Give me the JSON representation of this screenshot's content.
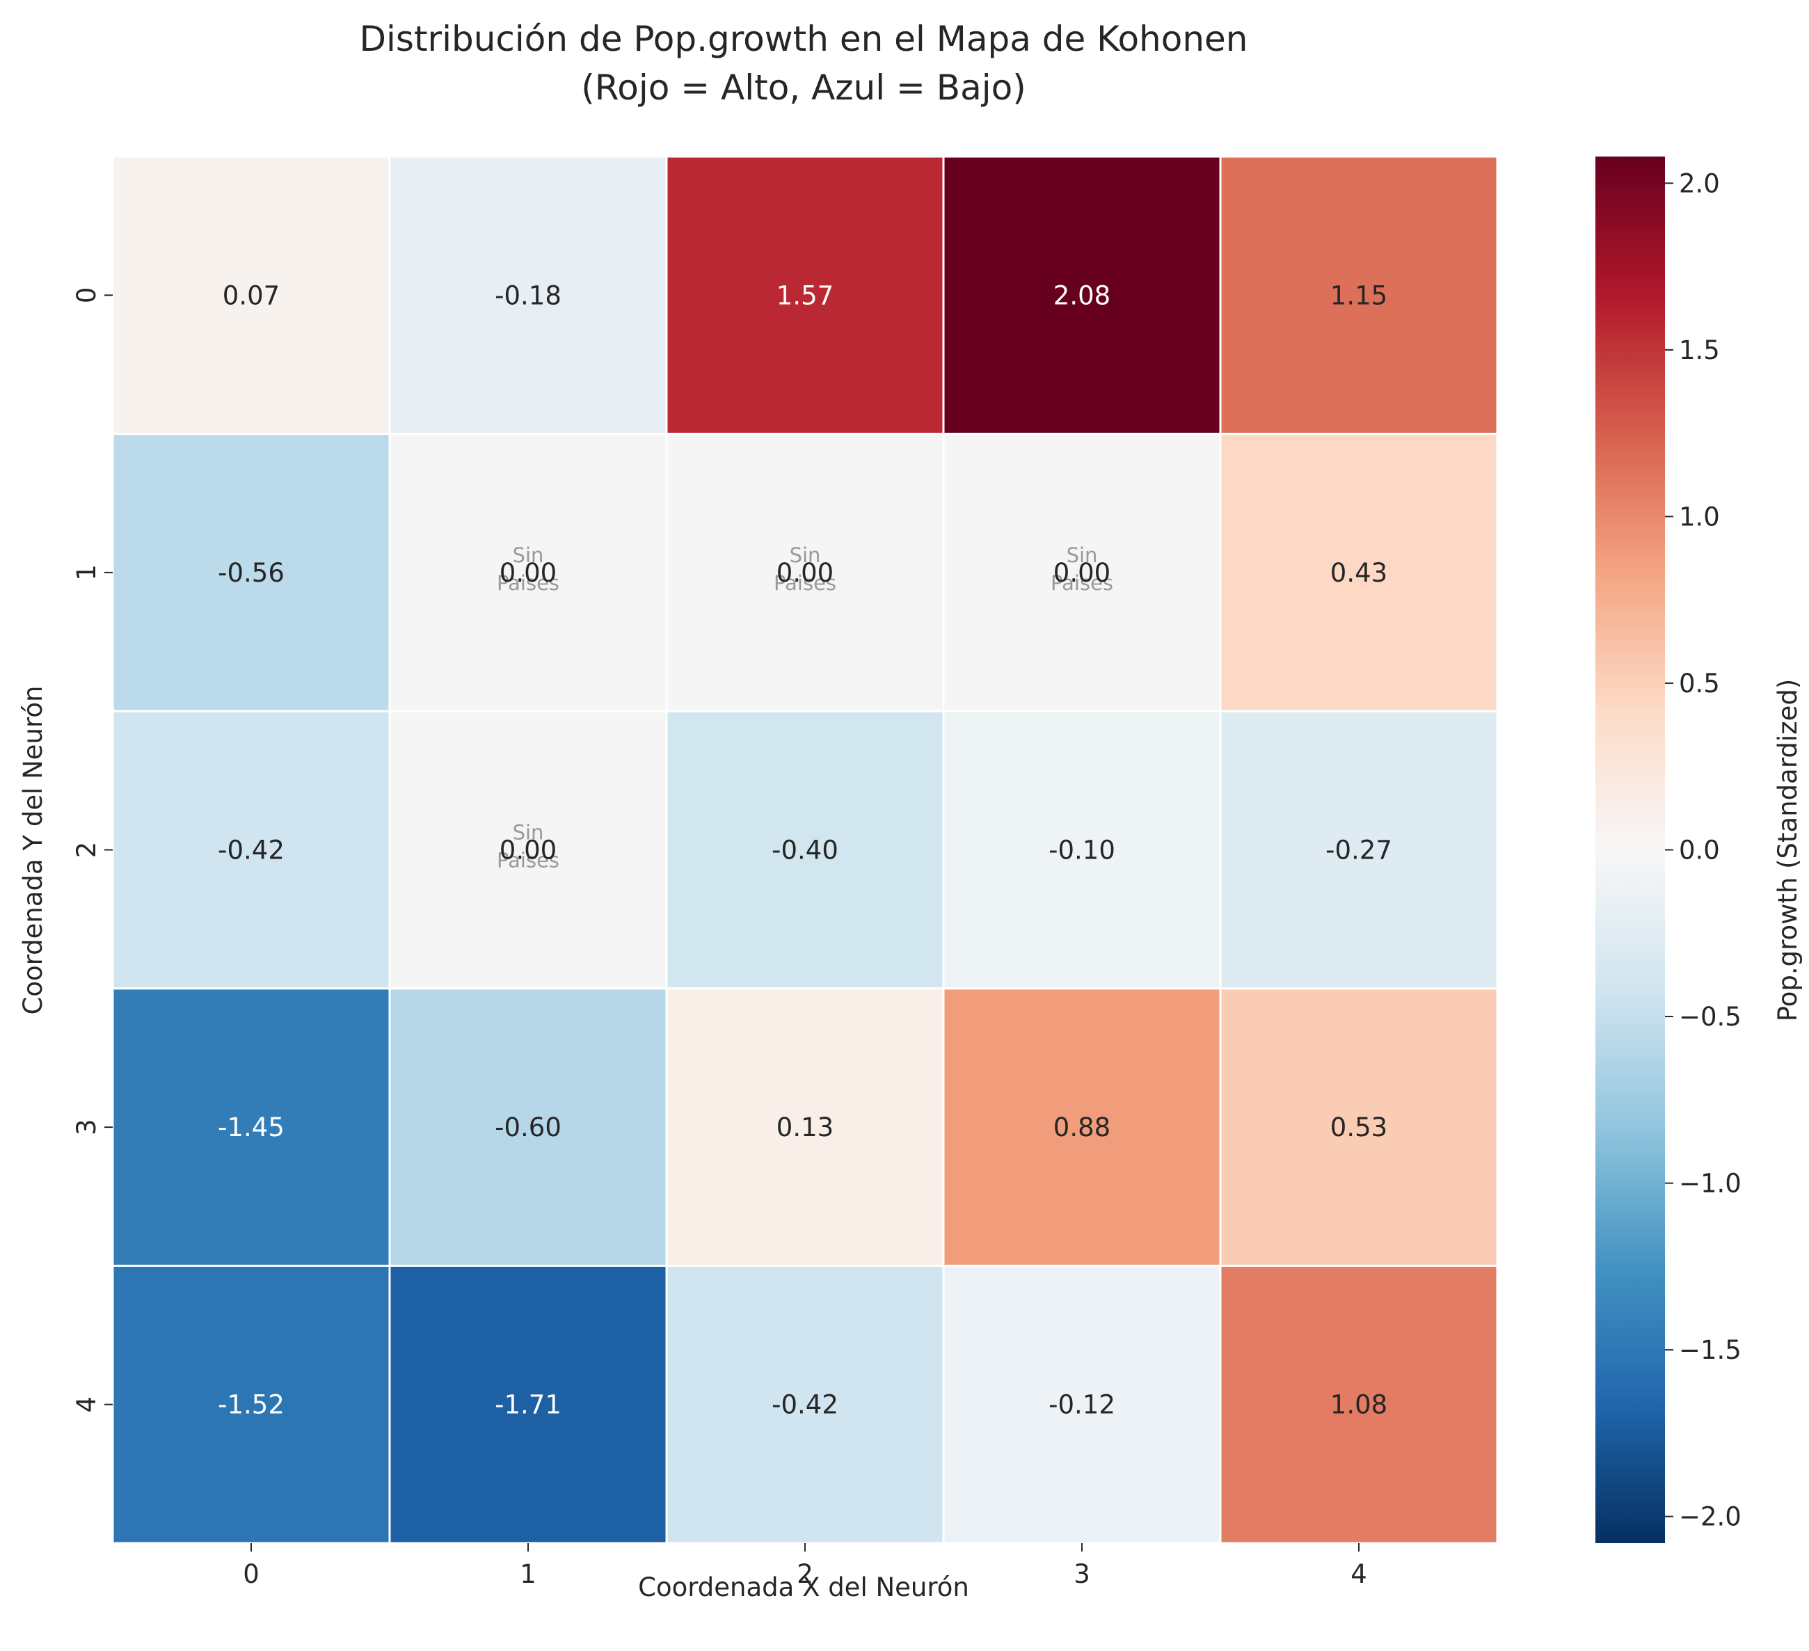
{
  "chart_data": {
    "type": "heatmap",
    "title_line1": "Distribución de Pop.growth en el Mapa de Kohonen",
    "title_line2": "(Rojo = Alto, Azul = Bajo)",
    "xlabel": "Coordenada X del Neurón",
    "ylabel": "Coordenada Y del Neurón",
    "colorbar_label": "Pop.growth (Standardized)",
    "colormap": "RdBu_r",
    "vlim": [
      -2.08,
      2.08
    ],
    "x_categories": [
      "0",
      "1",
      "2",
      "3",
      "4"
    ],
    "y_categories": [
      "0",
      "1",
      "2",
      "3",
      "4"
    ],
    "values": [
      [
        0.07,
        -0.18,
        1.57,
        2.08,
        1.15
      ],
      [
        -0.56,
        0.0,
        0.0,
        0.0,
        0.43
      ],
      [
        -0.42,
        0.0,
        -0.4,
        -0.1,
        -0.27
      ],
      [
        -1.45,
        -0.6,
        0.13,
        0.88,
        0.53
      ],
      [
        -1.52,
        -1.71,
        -0.42,
        -0.12,
        1.08
      ]
    ],
    "cell_labels": [
      [
        "0.07",
        "-0.18",
        "1.57",
        "2.08",
        "1.15"
      ],
      [
        "-0.56",
        "0.00",
        "0.00",
        "0.00",
        "0.43"
      ],
      [
        "-0.42",
        "0.00",
        "-0.40",
        "-0.10",
        "-0.27"
      ],
      [
        "-1.45",
        "-0.60",
        "0.13",
        "0.88",
        "0.53"
      ],
      [
        "-1.52",
        "-1.71",
        "-0.42",
        "-0.12",
        "1.08"
      ]
    ],
    "empty_cells": [
      [
        1,
        1
      ],
      [
        1,
        2
      ],
      [
        1,
        3
      ],
      [
        2,
        1
      ]
    ],
    "empty_label_line1": "Sin",
    "empty_label_line2": "Paises",
    "colorbar_ticks": [
      {
        "value": 2.0,
        "label": "2.0"
      },
      {
        "value": 1.5,
        "label": "1.5"
      },
      {
        "value": 1.0,
        "label": "1.0"
      },
      {
        "value": 0.5,
        "label": "0.5"
      },
      {
        "value": 0.0,
        "label": "0.0"
      },
      {
        "value": -0.5,
        "label": "−0.5"
      },
      {
        "value": -1.0,
        "label": "−1.0"
      },
      {
        "value": -1.5,
        "label": "−1.5"
      },
      {
        "value": -2.0,
        "label": "−2.0"
      }
    ],
    "empty_cell_color": "#f5f5f5",
    "empty_label_color": "#999999"
  }
}
